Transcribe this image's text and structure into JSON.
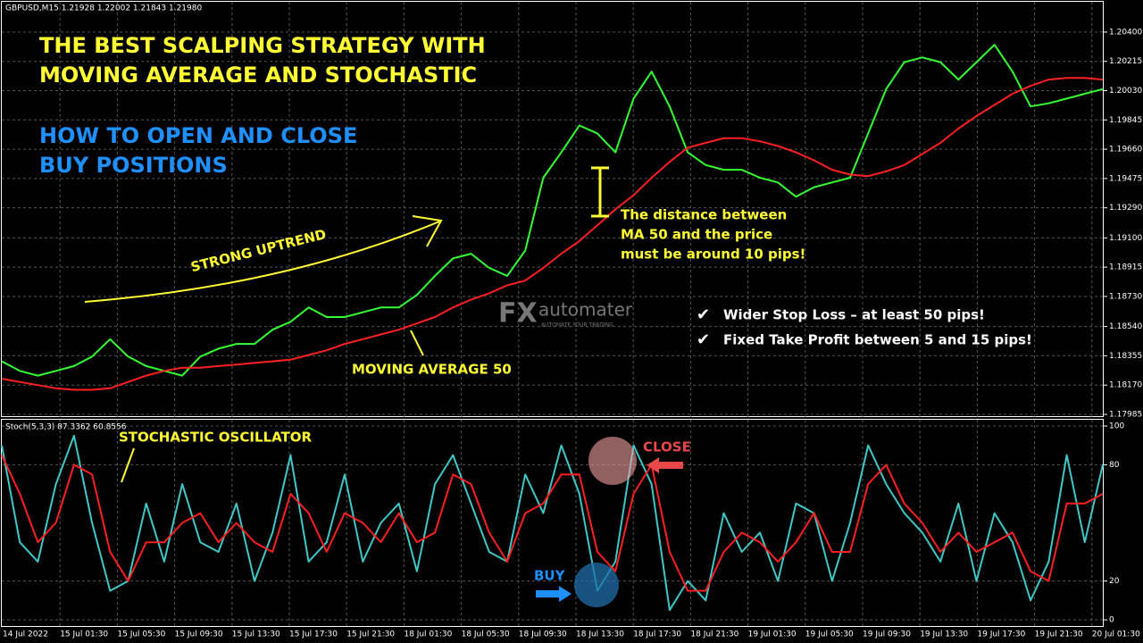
{
  "header": "GBPUSD,M15  1.21928 1.22002 1.21843 1.21980",
  "headline": [
    "THE BEST SCALPING STRATEGY WITH",
    "MOVING AVERAGE AND STOCHASTIC"
  ],
  "subheadline": [
    "HOW TO OPEN AND CLOSE",
    "BUY POSITIONS"
  ],
  "annotations": {
    "trend": "STRONG UPTREND",
    "ma": "MOVING AVERAGE 50",
    "distance": [
      "The distance between",
      "MA 50 and the price",
      "must be around 10 pips!"
    ],
    "rules": [
      "Wider Stop Loss – at least 50 pips!",
      "Fixed Take Profit  between 5 and 15 pips!"
    ],
    "stoch": "STOCHASTIC OSCILLATOR",
    "close": "CLOSE",
    "buy": "BUY"
  },
  "watermark": {
    "brand_a": "FX",
    "brand_b": "automater",
    "tagline": "AUTOMATE YOUR TRADING"
  },
  "x_labels": [
    "14 Jul 2022",
    "15 Jul 01:30",
    "15 Jul 05:30",
    "15 Jul 09:30",
    "15 Jul 13:30",
    "15 Jul 17:30",
    "15 Jul 21:30",
    "18 Jul 01:30",
    "18 Jul 05:30",
    "18 Jul 09:30",
    "18 Jul 13:30",
    "18 Jul 17:30",
    "18 Jul 21:30",
    "19 Jul 01:30",
    "19 Jul 05:30",
    "19 Jul 09:30",
    "19 Jul 13:30",
    "19 Jul 17:30",
    "19 Jul 21:30",
    "20 Jul 01:30"
  ],
  "chart_data": [
    {
      "type": "line",
      "grid": true,
      "ylim": [
        1.17985,
        1.20518
      ],
      "yticks": [
        {
          "value": 1.204,
          "label": "1.20400"
        },
        {
          "value": 1.20215,
          "label": "1.20215"
        },
        {
          "value": 1.2003,
          "label": "1.20030"
        },
        {
          "value": 1.19845,
          "label": "1.19845"
        },
        {
          "value": 1.1966,
          "label": "1.19660"
        },
        {
          "value": 1.19475,
          "label": "1.19475"
        },
        {
          "value": 1.1929,
          "label": "1.19290"
        },
        {
          "value": 1.191,
          "label": "1.19100"
        },
        {
          "value": 1.18915,
          "label": "1.18915"
        },
        {
          "value": 1.1873,
          "label": "1.18730"
        },
        {
          "value": 1.1854,
          "label": "1.18540"
        },
        {
          "value": 1.18355,
          "label": "1.18355"
        },
        {
          "value": 1.1817,
          "label": "1.18170"
        },
        {
          "value": 1.17985,
          "label": "1.17985"
        }
      ],
      "series": [
        {
          "color": "#33ff33",
          "values": [
            1.1832,
            1.1826,
            1.1823,
            1.1826,
            1.1829,
            1.1835,
            1.1846,
            1.1835,
            1.1829,
            1.1826,
            1.1823,
            1.1835,
            1.184,
            1.1843,
            1.1843,
            1.1852,
            1.1857,
            1.1866,
            1.186,
            1.186,
            1.1863,
            1.1866,
            1.1866,
            1.1874,
            1.1886,
            1.1897,
            1.19,
            1.1891,
            1.1886,
            1.1902,
            1.1948,
            1.1964,
            1.1981,
            1.1976,
            1.1964,
            1.1998,
            1.2015,
            1.1993,
            1.1964,
            1.1956,
            1.1953,
            1.1953,
            1.1948,
            1.1945,
            1.1936,
            1.1942,
            1.1945,
            1.1948,
            1.1976,
            1.2004,
            1.2021,
            1.2024,
            1.2021,
            1.201,
            1.2021,
            1.2032,
            1.2015,
            1.1993,
            1.1995,
            1.1998,
            1.2001,
            1.2004
          ]
        },
        {
          "color": "#ff2020",
          "values": [
            1.1821,
            1.1819,
            1.1817,
            1.1815,
            1.1814,
            1.1814,
            1.1815,
            1.1819,
            1.1823,
            1.1826,
            1.1828,
            1.1828,
            1.1829,
            1.183,
            1.1831,
            1.1832,
            1.1833,
            1.1836,
            1.1839,
            1.1843,
            1.1846,
            1.1849,
            1.1852,
            1.1856,
            1.186,
            1.1866,
            1.1871,
            1.1875,
            1.188,
            1.1883,
            1.1891,
            1.19,
            1.1908,
            1.1918,
            1.1928,
            1.1937,
            1.1948,
            1.1958,
            1.1967,
            1.197,
            1.1973,
            1.1973,
            1.1971,
            1.1968,
            1.1964,
            1.1959,
            1.1953,
            1.195,
            1.1949,
            1.1952,
            1.1956,
            1.1963,
            1.197,
            1.1979,
            1.1987,
            1.1994,
            1.2001,
            1.2006,
            1.201,
            1.2011,
            1.2011,
            1.201
          ]
        }
      ]
    },
    {
      "type": "line",
      "title": "Stoch(5,3,3) 87.3362 60.8556",
      "grid": true,
      "ylim": [
        0,
        100
      ],
      "yticks": [
        0,
        20,
        80,
        100
      ],
      "series": [
        {
          "color": "#3ec8c8",
          "values": [
            90,
            40,
            30,
            70,
            95,
            50,
            15,
            20,
            60,
            30,
            70,
            40,
            35,
            60,
            20,
            45,
            85,
            30,
            40,
            75,
            30,
            50,
            60,
            25,
            70,
            85,
            60,
            35,
            30,
            75,
            55,
            90,
            65,
            15,
            30,
            90,
            70,
            5,
            20,
            10,
            55,
            35,
            45,
            20,
            60,
            55,
            20,
            50,
            90,
            70,
            55,
            45,
            30,
            60,
            20,
            55,
            40,
            10,
            30,
            85,
            40,
            80
          ]
        },
        {
          "color": "#ff2020",
          "values": [
            85,
            65,
            40,
            50,
            80,
            75,
            35,
            20,
            40,
            40,
            50,
            55,
            40,
            50,
            40,
            35,
            65,
            55,
            35,
            55,
            50,
            40,
            55,
            40,
            45,
            75,
            70,
            45,
            30,
            55,
            60,
            75,
            75,
            35,
            25,
            65,
            80,
            35,
            15,
            15,
            35,
            45,
            40,
            30,
            40,
            55,
            35,
            35,
            70,
            80,
            60,
            50,
            35,
            45,
            35,
            40,
            45,
            25,
            20,
            60,
            60,
            65
          ]
        }
      ]
    }
  ]
}
